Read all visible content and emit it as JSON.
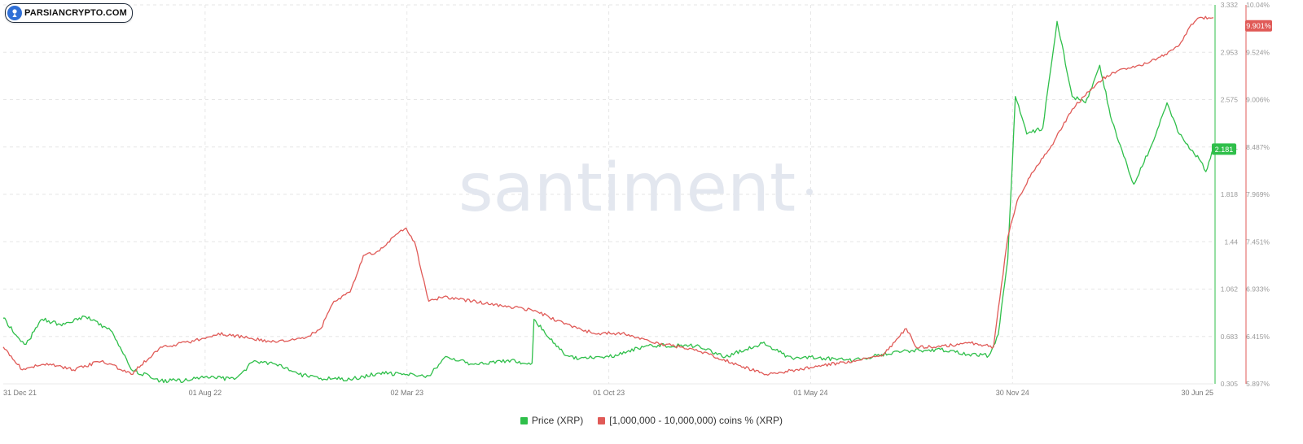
{
  "watermark": {
    "logo_text": "PARSIANCRYPTO.COM",
    "brand": "santiment"
  },
  "legend": [
    {
      "label": "Price (XRP)",
      "color": "#2fbf4a"
    },
    {
      "label": "[1,000,000 - 10,000,000) coins % (XRP)",
      "color": "#e05a57"
    }
  ],
  "chart_data": {
    "type": "line",
    "x_tick_labels": [
      "31 Dec 21",
      "01 Aug 22",
      "02 Mar 23",
      "01 Oct 23",
      "01 May 24",
      "30 Nov 24",
      "30 Jun 25"
    ],
    "x_tick_dates": [
      "2021-12-31",
      "2022-08-01",
      "2023-03-02",
      "2023-10-01",
      "2024-05-01",
      "2024-11-30",
      "2025-06-30"
    ],
    "x_range": [
      "2021-12-31",
      "2025-06-30"
    ],
    "grid": true,
    "legend_position": "bottom",
    "y_axes": [
      {
        "name": "Price (XRP)",
        "side": "right",
        "color": "#2fbf4a",
        "range": [
          0.305,
          3.332
        ],
        "ticks": [
          "3.332",
          "2.953",
          "2.575",
          "2.181",
          "1.818",
          "1.44",
          "1.062",
          "0.683",
          "0.305"
        ],
        "current_value_label": "2.181"
      },
      {
        "name": "[1,000,000 - 10,000,000) coins % (XRP)",
        "side": "right",
        "color": "#e05a57",
        "range": [
          5.897,
          10.04
        ],
        "ticks": [
          "10.04%",
          "9.524%",
          "9.006%",
          "8.487%",
          "7.969%",
          "7.451%",
          "6.933%",
          "6.415%",
          "5.897%"
        ],
        "current_value_label": "9.901%"
      }
    ],
    "series": [
      {
        "name": "Price (XRP)",
        "axis": 0,
        "color": "#2fbf4a",
        "x": [
          "2021-12-31",
          "2022-01-15",
          "2022-01-24",
          "2022-02-10",
          "2022-03-01",
          "2022-03-28",
          "2022-04-25",
          "2022-05-15",
          "2022-06-15",
          "2022-07-10",
          "2022-08-01",
          "2022-09-01",
          "2022-09-22",
          "2022-10-15",
          "2022-11-08",
          "2022-12-01",
          "2023-01-01",
          "2023-02-01",
          "2023-03-02",
          "2023-03-25",
          "2023-04-10",
          "2023-05-15",
          "2023-06-15",
          "2023-07-12",
          "2023-07-14",
          "2023-08-17",
          "2023-09-01",
          "2023-10-01",
          "2023-11-10",
          "2024-01-01",
          "2024-02-01",
          "2024-03-11",
          "2024-04-13",
          "2024-05-01",
          "2024-06-15",
          "2024-07-15",
          "2024-08-15",
          "2024-09-15",
          "2024-10-15",
          "2024-11-05",
          "2024-11-15",
          "2024-11-25",
          "2024-12-03",
          "2024-12-15",
          "2025-01-01",
          "2025-01-16",
          "2025-02-01",
          "2025-02-15",
          "2025-03-02",
          "2025-03-15",
          "2025-04-07",
          "2025-04-25",
          "2025-05-12",
          "2025-05-25",
          "2025-06-15",
          "2025-06-22",
          "2025-06-30"
        ],
        "y": [
          0.83,
          0.68,
          0.62,
          0.82,
          0.78,
          0.84,
          0.72,
          0.42,
          0.33,
          0.33,
          0.36,
          0.34,
          0.49,
          0.46,
          0.38,
          0.35,
          0.34,
          0.39,
          0.38,
          0.37,
          0.51,
          0.46,
          0.49,
          0.47,
          0.82,
          0.53,
          0.51,
          0.52,
          0.61,
          0.61,
          0.52,
          0.63,
          0.5,
          0.52,
          0.49,
          0.54,
          0.57,
          0.58,
          0.54,
          0.53,
          0.7,
          1.3,
          2.6,
          2.3,
          2.35,
          3.2,
          2.6,
          2.55,
          2.85,
          2.4,
          1.9,
          2.2,
          2.55,
          2.3,
          2.1,
          2.0,
          2.18
        ]
      },
      {
        "name": "[1,000,000 - 10,000,000) coins % (XRP)",
        "axis": 1,
        "color": "#e05a57",
        "x": [
          "2021-12-31",
          "2022-01-20",
          "2022-02-15",
          "2022-03-15",
          "2022-04-15",
          "2022-05-15",
          "2022-06-15",
          "2022-07-15",
          "2022-08-15",
          "2022-09-15",
          "2022-10-15",
          "2022-11-15",
          "2022-12-01",
          "2022-12-15",
          "2023-01-01",
          "2023-01-15",
          "2023-02-01",
          "2023-02-15",
          "2023-03-01",
          "2023-03-10",
          "2023-03-25",
          "2023-04-10",
          "2023-05-10",
          "2023-06-10",
          "2023-07-15",
          "2023-08-15",
          "2023-09-15",
          "2023-10-15",
          "2023-11-15",
          "2023-12-15",
          "2024-01-15",
          "2024-02-15",
          "2024-03-15",
          "2024-04-15",
          "2024-05-15",
          "2024-06-15",
          "2024-07-15",
          "2024-08-10",
          "2024-08-20",
          "2024-09-15",
          "2024-10-15",
          "2024-11-10",
          "2024-11-25",
          "2024-12-05",
          "2024-12-20",
          "2025-01-10",
          "2025-02-01",
          "2025-02-15",
          "2025-03-01",
          "2025-03-15",
          "2025-04-01",
          "2025-04-20",
          "2025-05-10",
          "2025-05-25",
          "2025-06-05",
          "2025-06-15",
          "2025-06-30"
        ],
        "y": [
          6.3,
          6.05,
          6.12,
          6.05,
          6.15,
          6.0,
          6.3,
          6.35,
          6.45,
          6.4,
          6.35,
          6.4,
          6.5,
          6.8,
          6.9,
          7.3,
          7.35,
          7.5,
          7.6,
          7.45,
          6.8,
          6.85,
          6.8,
          6.75,
          6.7,
          6.55,
          6.45,
          6.45,
          6.35,
          6.3,
          6.22,
          6.1,
          6.0,
          6.05,
          6.1,
          6.15,
          6.2,
          6.5,
          6.3,
          6.3,
          6.35,
          6.3,
          7.5,
          7.9,
          8.2,
          8.5,
          8.9,
          9.05,
          9.2,
          9.3,
          9.35,
          9.4,
          9.5,
          9.6,
          9.8,
          9.9,
          9.9
        ]
      }
    ]
  }
}
